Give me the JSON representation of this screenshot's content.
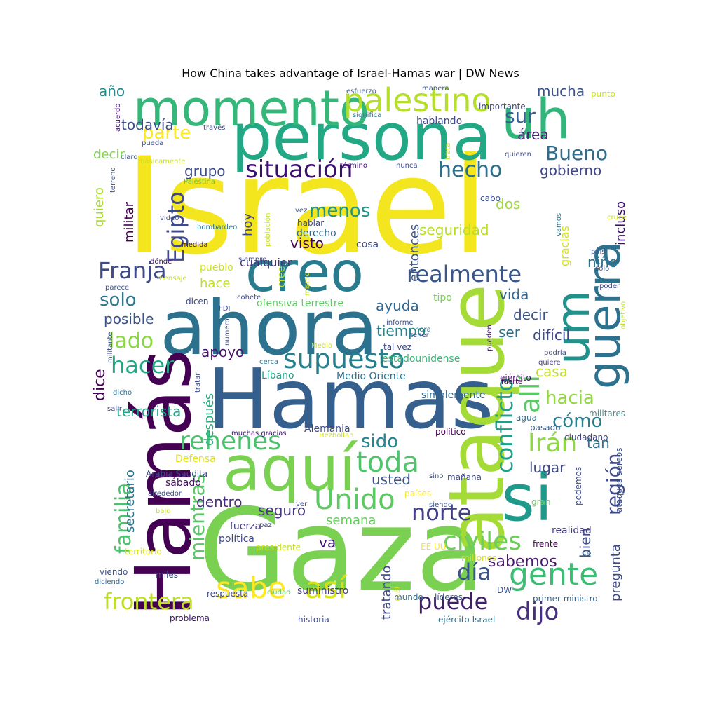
{
  "title": "How China takes advantage of Israel-Hamas war | DW News",
  "words": [
    {
      "text": "Israel",
      "color": "#f4e61e"
    },
    {
      "text": "Gaza",
      "color": "#7ad151"
    },
    {
      "text": "Hamas",
      "color": "#355f8d"
    },
    {
      "text": "persona",
      "color": "#22a884"
    },
    {
      "text": "ahora",
      "color": "#2c728e"
    },
    {
      "text": "ataque",
      "color": "#a5db36"
    },
    {
      "text": "Hamás",
      "color": "#440154"
    },
    {
      "text": "aquí",
      "color": "#7ad151"
    },
    {
      "text": "si",
      "color": "#1f9a8a"
    },
    {
      "text": "creo",
      "color": "#287c8e"
    },
    {
      "text": "momento",
      "color": "#35b779"
    },
    {
      "text": "uh",
      "color": "#31b57b"
    },
    {
      "text": "guerra",
      "color": "#2c728e"
    },
    {
      "text": "um",
      "color": "#21918c"
    },
    {
      "text": "palestino",
      "color": "#b5de2b"
    },
    {
      "text": "situación",
      "color": "#3b0f70"
    },
    {
      "text": "Egipto",
      "color": "#3e4a89"
    },
    {
      "text": "Franja",
      "color": "#3e4989"
    },
    {
      "text": "realmente",
      "color": "#39568c"
    },
    {
      "text": "supuesto",
      "color": "#277f8e"
    },
    {
      "text": "hacer",
      "color": "#22a785"
    },
    {
      "text": "sabe",
      "color": "#fde725"
    },
    {
      "text": "así",
      "color": "#d8e219"
    },
    {
      "text": "gente",
      "color": "#3dbc74"
    },
    {
      "text": "civiles",
      "color": "#6ccd5a"
    },
    {
      "text": "Unido",
      "color": "#5ec962"
    },
    {
      "text": "rehenes",
      "color": "#4ac16d"
    },
    {
      "text": "toda",
      "color": "#4fc46a"
    },
    {
      "text": "Irán",
      "color": "#8fd744"
    },
    {
      "text": "conflicto",
      "color": "#1f9e89"
    },
    {
      "text": "allí",
      "color": "#5ac864"
    },
    {
      "text": "familia",
      "color": "#4ac16d"
    },
    {
      "text": "mientras",
      "color": "#58c765"
    },
    {
      "text": "región",
      "color": "#3e4989"
    },
    {
      "text": "norte",
      "color": "#424086"
    },
    {
      "text": "día",
      "color": "#3a548c"
    },
    {
      "text": "puede",
      "color": "#3f1f6c"
    },
    {
      "text": "frontera",
      "color": "#bddf26"
    },
    {
      "text": "dijo",
      "color": "#462f7c"
    },
    {
      "text": "hecho",
      "color": "#2e6f8e"
    },
    {
      "text": "parte",
      "color": "#fbe723"
    },
    {
      "text": "sur",
      "color": "#35608d"
    },
    {
      "text": "Bueno",
      "color": "#2f6c8e"
    },
    {
      "text": "lado",
      "color": "#8bd646"
    },
    {
      "text": "solo",
      "color": "#2c738e"
    },
    {
      "text": "cómo",
      "color": "#27808e"
    },
    {
      "text": "hacia",
      "color": "#93d741"
    },
    {
      "text": "sido",
      "color": "#24868e"
    },
    {
      "text": "menos",
      "color": "#1f948c"
    },
    {
      "text": "apoyo",
      "color": "#481668"
    },
    {
      "text": "ayuda",
      "color": "#31678e"
    },
    {
      "text": "tiempo",
      "color": "#24878e"
    },
    {
      "text": "sabemos",
      "color": "#481a6c"
    },
    {
      "text": "mucha",
      "color": "#3a538b"
    },
    {
      "text": "año",
      "color": "#23898e"
    },
    {
      "text": "todavía",
      "color": "#3d4d8a"
    },
    {
      "text": "área",
      "color": "#482374"
    },
    {
      "text": "gobierno",
      "color": "#404688"
    },
    {
      "text": "grupo",
      "color": "#3e4c8a"
    },
    {
      "text": "seguridad",
      "color": "#b8de29"
    },
    {
      "text": "visto",
      "color": "#440154"
    },
    {
      "text": "entonces",
      "color": "#3a548c"
    },
    {
      "text": "hoy",
      "color": "#3f4889"
    },
    {
      "text": "dos",
      "color": "#a2da37"
    },
    {
      "text": "niño",
      "color": "#2c718e"
    },
    {
      "text": "vida",
      "color": "#33628d"
    },
    {
      "text": "decir",
      "color": "#3a548c"
    },
    {
      "text": "ser",
      "color": "#2d708e"
    },
    {
      "text": "difícil",
      "color": "#3e4989"
    },
    {
      "text": "posible",
      "color": "#3b528b"
    },
    {
      "text": "hace",
      "color": "#c0df25"
    },
    {
      "text": "dice",
      "color": "#440154"
    },
    {
      "text": "terrorista",
      "color": "#21a585"
    },
    {
      "text": "después",
      "color": "#27ad81"
    },
    {
      "text": "seguro",
      "color": "#453781"
    },
    {
      "text": "dentro",
      "color": "#472c7a"
    },
    {
      "text": "semana",
      "color": "#63cb5f"
    },
    {
      "text": "usted",
      "color": "#3b528b"
    },
    {
      "text": "lugar",
      "color": "#3e4989"
    },
    {
      "text": "tan",
      "color": "#2e6e8e"
    },
    {
      "text": "casa",
      "color": "#c2df23"
    },
    {
      "text": "secretario",
      "color": "#2c728e"
    },
    {
      "text": "va",
      "color": "#3b0f70"
    },
    {
      "text": "tratando",
      "color": "#3e4a89"
    },
    {
      "text": "bien",
      "color": "#3e4a89"
    },
    {
      "text": "pregunta",
      "color": "#3e4989"
    },
    {
      "text": "incluso",
      "color": "#3b0f70"
    },
    {
      "text": "quiero",
      "color": "#addc30"
    },
    {
      "text": "decir",
      "color": "#7fd34e"
    },
    {
      "text": "militar",
      "color": "#440154"
    },
    {
      "text": "gracias",
      "color": "#d2e21b"
    },
    {
      "text": "cualquier",
      "color": "#46337f"
    },
    {
      "text": "pueblo",
      "color": "#cae11f"
    },
    {
      "text": "ofensiva terrestre",
      "color": "#5ec962"
    },
    {
      "text": "Medio Oriente",
      "color": "#2c728e"
    },
    {
      "text": "Líbano",
      "color": "#1fa188"
    },
    {
      "text": "estadounidense",
      "color": "#35b779"
    },
    {
      "text": "simplemente",
      "color": "#31688e"
    },
    {
      "text": "ejército",
      "color": "#471164"
    },
    {
      "text": "fuerte",
      "color": "#440154"
    },
    {
      "text": "Alemania",
      "color": "#3e4c8a"
    },
    {
      "text": "Hezbollah",
      "color": "#c8e020"
    },
    {
      "text": "Defensa",
      "color": "#dfe318"
    },
    {
      "text": "Arabia Saudita",
      "color": "#3e4a89"
    },
    {
      "text": "sábado",
      "color": "#471365"
    },
    {
      "text": "países",
      "color": "#fde725"
    },
    {
      "text": "político",
      "color": "#440154"
    },
    {
      "text": "fuerza",
      "color": "#433e85"
    },
    {
      "text": "política",
      "color": "#3f4788"
    },
    {
      "text": "presidente",
      "color": "#c5e021"
    },
    {
      "text": "territorio",
      "color": "#d5e21a"
    },
    {
      "text": "ciudadano",
      "color": "#404588"
    },
    {
      "text": "militares",
      "color": "#4c8c8a"
    },
    {
      "text": "pasado",
      "color": "#355e8d"
    },
    {
      "text": "agua",
      "color": "#2c728e"
    },
    {
      "text": "podemos",
      "color": "#3e4c8a"
    },
    {
      "text": "ataques aéreos",
      "color": "#3c4f8a"
    },
    {
      "text": "realidad",
      "color": "#433e85"
    },
    {
      "text": "frente",
      "color": "#440154"
    },
    {
      "text": "gran",
      "color": "#6ccd5a"
    },
    {
      "text": "EE UU",
      "color": "#fde725"
    },
    {
      "text": "millones",
      "color": "#d2e21b"
    },
    {
      "text": "sé",
      "color": "#31688e"
    },
    {
      "text": "primer ministro",
      "color": "#33638d"
    },
    {
      "text": "DW",
      "color": "#3b528b"
    },
    {
      "text": "líderes",
      "color": "#3b528b"
    },
    {
      "text": "mundo",
      "color": "#2e6f8e"
    },
    {
      "text": "suministro",
      "color": "#433e85"
    },
    {
      "text": "respuesta",
      "color": "#3e4989"
    },
    {
      "text": "ciudad",
      "color": "#5ac864"
    },
    {
      "text": "historia",
      "color": "#3e4a89"
    },
    {
      "text": "problema",
      "color": "#3b0f70"
    },
    {
      "text": "ejército Israel",
      "color": "#2c728e"
    },
    {
      "text": "cuál",
      "color": "#d8e219"
    },
    {
      "text": "viendo",
      "color": "#3b528b"
    },
    {
      "text": "diciendo",
      "color": "#31688e"
    },
    {
      "text": "miles",
      "color": "#3b528b"
    },
    {
      "text": "salir",
      "color": "#3e4989"
    },
    {
      "text": "dicho",
      "color": "#2d708e"
    },
    {
      "text": "militante",
      "color": "#3b528b"
    },
    {
      "text": "tratar",
      "color": "#3e4a89"
    },
    {
      "text": "mensaje",
      "color": "#c2df23"
    },
    {
      "text": "parece",
      "color": "#3b528b"
    },
    {
      "text": "dicen",
      "color": "#3e4989"
    },
    {
      "text": "FDI",
      "color": "#404588"
    },
    {
      "text": "cohete",
      "color": "#3e4989"
    },
    {
      "text": "mismo",
      "color": "#d2e21b"
    },
    {
      "text": "cree",
      "color": "#bddf26"
    },
    {
      "text": "número",
      "color": "#3e4989"
    },
    {
      "text": "informe",
      "color": "#3b528b"
    },
    {
      "text": "hora",
      "color": "#2c728e"
    },
    {
      "text": "tal vez",
      "color": "#3e4989"
    },
    {
      "text": "tener",
      "color": "#3e4c8a"
    },
    {
      "text": "Medio",
      "color": "#c8e020"
    },
    {
      "text": "cerca",
      "color": "#2c728e"
    },
    {
      "text": "pueden",
      "color": "#3b0f70"
    },
    {
      "text": "podría",
      "color": "#3e4989"
    },
    {
      "text": "quiere",
      "color": "#433e85"
    },
    {
      "text": "objetivo",
      "color": "#c2df23"
    },
    {
      "text": "poder",
      "color": "#3e4989"
    },
    {
      "text": "sólo",
      "color": "#3b528b"
    },
    {
      "text": "país",
      "color": "#3b528b"
    },
    {
      "text": "cruce",
      "color": "#c8e020"
    },
    {
      "text": "vamos",
      "color": "#2c728e"
    },
    {
      "text": "tipo",
      "color": "#7ad151"
    },
    {
      "text": "siempre",
      "color": "#3e4989"
    },
    {
      "text": "dónde",
      "color": "#3b0f70"
    },
    {
      "text": "medida",
      "color": "#3b0f70"
    },
    {
      "text": "video",
      "color": "#3e4989"
    },
    {
      "text": "bombardeo",
      "color": "#2c728e"
    },
    {
      "text": "Palestina",
      "color": "#5ec962"
    },
    {
      "text": "vez",
      "color": "#3b528b"
    },
    {
      "text": "hablar",
      "color": "#3e4989"
    },
    {
      "text": "derecho",
      "color": "#31688e"
    },
    {
      "text": "cosa",
      "color": "#3e4989"
    },
    {
      "text": "población",
      "color": "#c8e020"
    },
    {
      "text": "cabo",
      "color": "#3b528b"
    },
    {
      "text": "nunca",
      "color": "#3e4989"
    },
    {
      "text": "término",
      "color": "#3b0f70"
    },
    {
      "text": "trata",
      "color": "#c8e020"
    },
    {
      "text": "quieren",
      "color": "#3e4989"
    },
    {
      "text": "básicamente",
      "color": "#c8e020"
    },
    {
      "text": "claro",
      "color": "#3b528b"
    },
    {
      "text": "pueda",
      "color": "#3e4989"
    },
    {
      "text": "acuerdo",
      "color": "#3b0f70"
    },
    {
      "text": "través",
      "color": "#3e4989"
    },
    {
      "text": "significa",
      "color": "#2c728e"
    },
    {
      "text": "hablando",
      "color": "#3e4989"
    },
    {
      "text": "esfuerzo",
      "color": "#3b528b"
    },
    {
      "text": "manera",
      "color": "#3b528b"
    },
    {
      "text": "importante",
      "color": "#3e4989"
    },
    {
      "text": "punto",
      "color": "#c8e020"
    },
    {
      "text": "terreno",
      "color": "#3b528b"
    },
    {
      "text": "sino",
      "color": "#3b528b"
    },
    {
      "text": "mañana",
      "color": "#3e4989"
    },
    {
      "text": "alrededor",
      "color": "#3b528b"
    },
    {
      "text": "bajo",
      "color": "#c8e020"
    },
    {
      "text": "ver",
      "color": "#3b528b"
    },
    {
      "text": "paz",
      "color": "#3e4989"
    },
    {
      "text": "siendo",
      "color": "#3b528b"
    },
    {
      "text": "muchas gracias",
      "color": "#3b0f70"
    }
  ]
}
